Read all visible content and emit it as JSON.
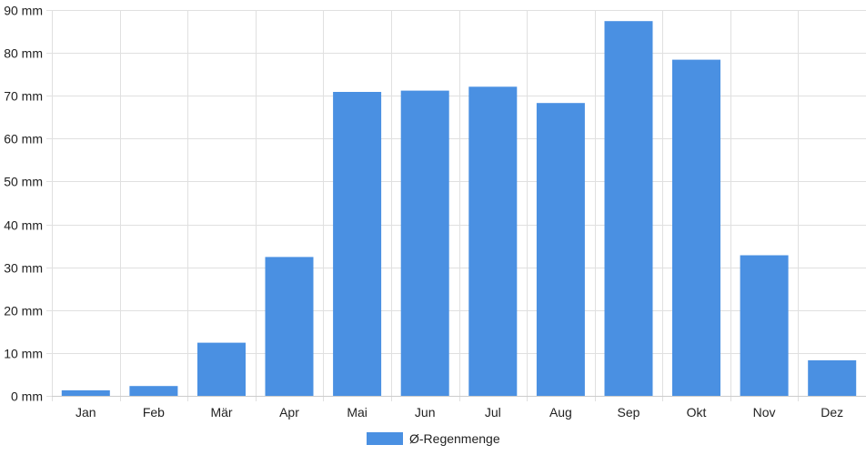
{
  "chart_data": {
    "type": "bar",
    "categories": [
      "Jan",
      "Feb",
      "Mär",
      "Apr",
      "Mai",
      "Jun",
      "Jul",
      "Aug",
      "Sep",
      "Okt",
      "Nov",
      "Dez"
    ],
    "series": [
      {
        "name": "Ø-Regenmenge",
        "values": [
          1.3,
          2.3,
          12.4,
          32.4,
          70.9,
          71.2,
          72.1,
          68.3,
          87.4,
          78.4,
          32.8,
          8.3
        ],
        "color": "#4a90e2"
      }
    ],
    "y_ticks": [
      "0 mm",
      "10 mm",
      "20 mm",
      "30 mm",
      "40 mm",
      "50 mm",
      "60 mm",
      "70 mm",
      "80 mm",
      "90 mm"
    ],
    "ylim": [
      0,
      90
    ],
    "unit": "mm",
    "grid": true,
    "legend_position": "bottom-center",
    "grid_color": "#e0e0e0",
    "title": "",
    "xlabel": "",
    "ylabel": ""
  }
}
